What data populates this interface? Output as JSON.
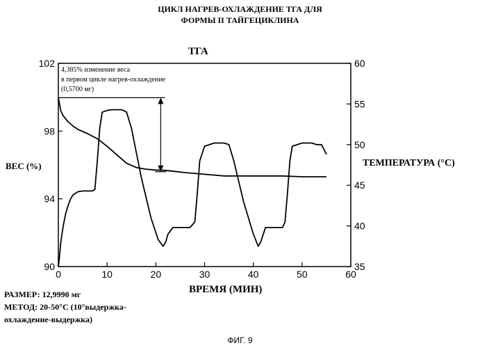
{
  "header": {
    "title_line1": "ЦИКЛ НАГРЕВ-ОХЛАЖДЕНИЕ ТГА ДЛЯ",
    "title_line2": "ФОРМЫ II ТАЙГЕЦИКЛИНА"
  },
  "footer": {
    "size": "РАЗМЕР: 12,9990 мг",
    "method_line1": "МЕТОД: 20-50°C (10°выдержка-",
    "method_line2": "охлаждение-выдержка)",
    "figure": "ФИГ. 9"
  },
  "chart_data": {
    "type": "line",
    "title": "ТГА",
    "xlabel": "ВРЕМЯ (МИН)",
    "ylabel": "ВЕС (%)",
    "ylabel_right": "ТЕМПЕРАТУРА (°C)",
    "xlim": [
      0,
      60
    ],
    "ylim": [
      90,
      102
    ],
    "ylim_right": [
      35,
      60
    ],
    "x_ticks": [
      0,
      10,
      20,
      30,
      40,
      50,
      60
    ],
    "y_ticks": [
      90,
      94,
      98,
      102
    ],
    "y_ticks_right": [
      35,
      40,
      45,
      50,
      55,
      60
    ],
    "grid": false,
    "annotation": {
      "lines": [
        "4,385% изменение веса",
        "в первом цикле нагрев-охлаждение",
        "(0,5700 мг)"
      ],
      "x": 21,
      "y_top": 99.97,
      "y_bottom": 95.6
    },
    "series": [
      {
        "axis": "left",
        "x": [
          0,
          0.5,
          1,
          2,
          3,
          4,
          6,
          8,
          10,
          12,
          14,
          16,
          18,
          20,
          22,
          26,
          30,
          34,
          38,
          42,
          46,
          50,
          55
        ],
        "y": [
          99.97,
          99.2,
          98.9,
          98.55,
          98.3,
          98.1,
          97.85,
          97.55,
          97.1,
          96.6,
          96.1,
          95.85,
          95.75,
          95.7,
          95.68,
          95.55,
          95.45,
          95.35,
          95.35,
          95.35,
          95.35,
          95.3,
          95.3
        ]
      },
      {
        "axis": "right",
        "x": [
          0,
          0.2,
          0.5,
          1,
          1.5,
          2,
          2.5,
          3,
          4,
          5,
          6,
          7,
          7.5,
          8,
          8.5,
          9,
          10,
          11,
          12,
          13,
          14,
          15,
          17,
          19,
          20.5,
          21.5,
          22,
          22.5,
          23.5,
          25,
          26,
          27,
          28,
          28.5,
          29,
          30,
          32,
          34,
          35,
          36,
          38,
          40,
          41,
          41.5,
          42.5,
          44,
          45,
          46,
          46.5,
          47,
          47.5,
          48,
          50,
          52,
          53,
          54,
          55
        ],
        "y": [
          35,
          36,
          38,
          40,
          41.5,
          42.5,
          43.3,
          43.8,
          44.2,
          44.3,
          44.3,
          44.3,
          44.5,
          48,
          52,
          54,
          54.2,
          54.3,
          54.3,
          54.3,
          54,
          52,
          46,
          41,
          38.3,
          37.5,
          38,
          39,
          39.8,
          39.8,
          39.8,
          39.8,
          40.5,
          44,
          48,
          49.8,
          50.2,
          50.2,
          50,
          48,
          43,
          39,
          37.5,
          38,
          39.8,
          39.8,
          39.8,
          39.8,
          40.5,
          44,
          48,
          49.8,
          50.2,
          50.2,
          50,
          50,
          48.8
        ]
      }
    ]
  }
}
